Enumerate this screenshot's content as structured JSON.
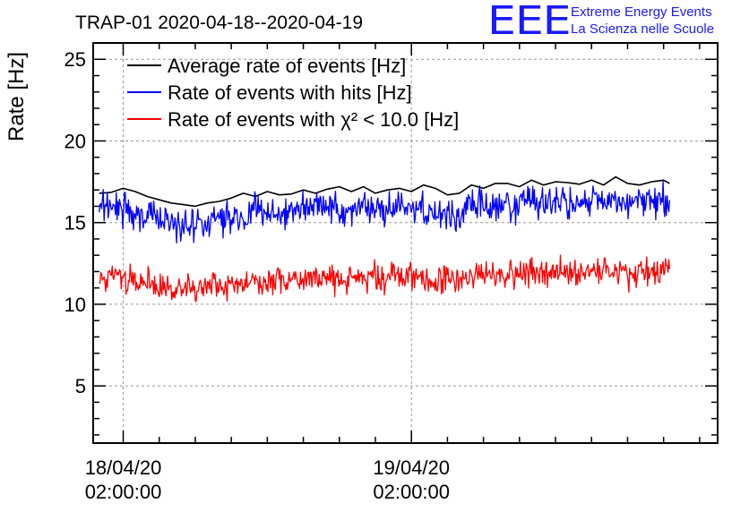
{
  "logo": {
    "mark": "EEE",
    "line1": "Extreme Energy Events",
    "line2": "La Scienza nelle Scuole"
  },
  "colors": {
    "average": "#000000",
    "hits": "#0000ff",
    "chi2": "#ff0000",
    "grid": "#999999",
    "logo": "#1a1aff"
  },
  "chart_data": {
    "type": "line",
    "title": "TRAP-01 2020-04-18--2020-04-19",
    "ylabel": "Rate [Hz]",
    "xlabel": "",
    "ylim": [
      1.5,
      26
    ],
    "yticks": [
      5,
      10,
      15,
      20,
      25
    ],
    "grid": true,
    "legend_position": "top-left",
    "x_range": [
      "2020-04-17 23:30:00",
      "2020-04-20 03:30:00"
    ],
    "xticks": [
      {
        "time": "2020-04-18 02:00:00",
        "date": "18/04/20",
        "clock": "02:00:00"
      },
      {
        "time": "2020-04-19 02:00:00",
        "date": "19/04/20",
        "clock": "02:00:00"
      }
    ],
    "data_span": [
      "2020-04-18 00:00:00",
      "2020-04-19 23:30:00"
    ],
    "series": [
      {
        "name": "Average rate of events [Hz]",
        "style": "smooth",
        "color": "#000000",
        "points": [
          [
            "2020-04-18 00:00:00",
            16.8
          ],
          [
            "2020-04-18 01:00:00",
            16.85
          ],
          [
            "2020-04-18 02:00:00",
            17.1
          ],
          [
            "2020-04-18 03:00:00",
            16.9
          ],
          [
            "2020-04-18 04:00:00",
            16.6
          ],
          [
            "2020-04-18 05:00:00",
            16.4
          ],
          [
            "2020-04-18 06:00:00",
            16.2
          ],
          [
            "2020-04-18 07:00:00",
            16.1
          ],
          [
            "2020-04-18 08:00:00",
            16.0
          ],
          [
            "2020-04-18 09:00:00",
            16.2
          ],
          [
            "2020-04-18 10:00:00",
            16.3
          ],
          [
            "2020-04-18 11:00:00",
            16.5
          ],
          [
            "2020-04-18 12:00:00",
            16.8
          ],
          [
            "2020-04-18 13:00:00",
            16.6
          ],
          [
            "2020-04-18 14:00:00",
            16.9
          ],
          [
            "2020-04-18 15:00:00",
            16.7
          ],
          [
            "2020-04-18 16:00:00",
            16.75
          ],
          [
            "2020-04-18 17:00:00",
            17.0
          ],
          [
            "2020-04-18 18:00:00",
            16.8
          ],
          [
            "2020-04-18 19:00:00",
            17.05
          ],
          [
            "2020-04-18 20:00:00",
            17.2
          ],
          [
            "2020-04-18 21:00:00",
            16.9
          ],
          [
            "2020-04-18 22:00:00",
            17.2
          ],
          [
            "2020-04-18 23:00:00",
            16.8
          ],
          [
            "2020-04-19 00:00:00",
            17.0
          ],
          [
            "2020-04-19 01:00:00",
            17.1
          ],
          [
            "2020-04-19 02:00:00",
            16.9
          ],
          [
            "2020-04-19 03:00:00",
            17.3
          ],
          [
            "2020-04-19 04:00:00",
            17.1
          ],
          [
            "2020-04-19 05:00:00",
            16.7
          ],
          [
            "2020-04-19 06:00:00",
            16.8
          ],
          [
            "2020-04-19 07:00:00",
            17.3
          ],
          [
            "2020-04-19 08:00:00",
            17.1
          ],
          [
            "2020-04-19 09:00:00",
            17.4
          ],
          [
            "2020-04-19 10:00:00",
            17.4
          ],
          [
            "2020-04-19 11:00:00",
            17.2
          ],
          [
            "2020-04-19 12:00:00",
            17.6
          ],
          [
            "2020-04-19 13:00:00",
            17.3
          ],
          [
            "2020-04-19 14:00:00",
            17.5
          ],
          [
            "2020-04-19 15:00:00",
            17.45
          ],
          [
            "2020-04-19 16:00:00",
            17.35
          ],
          [
            "2020-04-19 17:00:00",
            17.6
          ],
          [
            "2020-04-19 18:00:00",
            17.3
          ],
          [
            "2020-04-19 19:00:00",
            17.8
          ],
          [
            "2020-04-19 20:00:00",
            17.4
          ],
          [
            "2020-04-19 21:00:00",
            17.3
          ],
          [
            "2020-04-19 22:00:00",
            17.5
          ],
          [
            "2020-04-19 23:00:00",
            17.6
          ],
          [
            "2020-04-19 23:30:00",
            17.4
          ]
        ]
      },
      {
        "name": "Rate of events with hits [Hz]",
        "style": "noisy",
        "color": "#0000ff",
        "spread": 0.9,
        "baseline": [
          [
            "2020-04-18 00:00:00",
            15.8
          ],
          [
            "2020-04-18 02:00:00",
            16.0
          ],
          [
            "2020-04-18 04:00:00",
            15.5
          ],
          [
            "2020-04-18 06:00:00",
            15.0
          ],
          [
            "2020-04-18 08:00:00",
            14.8
          ],
          [
            "2020-04-18 10:00:00",
            15.2
          ],
          [
            "2020-04-18 12:00:00",
            15.5
          ],
          [
            "2020-04-18 14:00:00",
            15.6
          ],
          [
            "2020-04-18 16:00:00",
            15.7
          ],
          [
            "2020-04-18 18:00:00",
            15.8
          ],
          [
            "2020-04-18 20:00:00",
            15.9
          ],
          [
            "2020-04-18 22:00:00",
            15.9
          ],
          [
            "2020-04-19 00:00:00",
            15.9
          ],
          [
            "2020-04-19 02:00:00",
            16.0
          ],
          [
            "2020-04-19 04:00:00",
            15.7
          ],
          [
            "2020-04-19 06:00:00",
            15.6
          ],
          [
            "2020-04-19 08:00:00",
            16.2
          ],
          [
            "2020-04-19 10:00:00",
            16.0
          ],
          [
            "2020-04-19 12:00:00",
            16.1
          ],
          [
            "2020-04-19 14:00:00",
            16.2
          ],
          [
            "2020-04-19 16:00:00",
            16.1
          ],
          [
            "2020-04-19 18:00:00",
            16.3
          ],
          [
            "2020-04-19 20:00:00",
            16.2
          ],
          [
            "2020-04-19 22:00:00",
            16.2
          ],
          [
            "2020-04-19 23:30:00",
            16.3
          ]
        ]
      },
      {
        "name": "Rate of events with χ² < 10.0 [Hz]",
        "style": "noisy",
        "color": "#ff0000",
        "spread": 0.75,
        "baseline": [
          [
            "2020-04-18 00:00:00",
            11.6
          ],
          [
            "2020-04-18 02:00:00",
            11.7
          ],
          [
            "2020-04-18 04:00:00",
            11.4
          ],
          [
            "2020-04-18 06:00:00",
            11.0
          ],
          [
            "2020-04-18 08:00:00",
            10.9
          ],
          [
            "2020-04-18 10:00:00",
            11.1
          ],
          [
            "2020-04-18 12:00:00",
            11.4
          ],
          [
            "2020-04-18 14:00:00",
            11.5
          ],
          [
            "2020-04-18 16:00:00",
            11.5
          ],
          [
            "2020-04-18 18:00:00",
            11.6
          ],
          [
            "2020-04-18 20:00:00",
            11.6
          ],
          [
            "2020-04-18 22:00:00",
            11.7
          ],
          [
            "2020-04-19 00:00:00",
            11.7
          ],
          [
            "2020-04-19 02:00:00",
            11.7
          ],
          [
            "2020-04-19 04:00:00",
            11.6
          ],
          [
            "2020-04-19 06:00:00",
            11.5
          ],
          [
            "2020-04-19 08:00:00",
            11.9
          ],
          [
            "2020-04-19 10:00:00",
            11.8
          ],
          [
            "2020-04-19 12:00:00",
            11.9
          ],
          [
            "2020-04-19 14:00:00",
            11.9
          ],
          [
            "2020-04-19 16:00:00",
            11.9
          ],
          [
            "2020-04-19 18:00:00",
            12.0
          ],
          [
            "2020-04-19 20:00:00",
            11.9
          ],
          [
            "2020-04-19 22:00:00",
            12.0
          ],
          [
            "2020-04-19 23:30:00",
            12.1
          ]
        ]
      }
    ]
  }
}
